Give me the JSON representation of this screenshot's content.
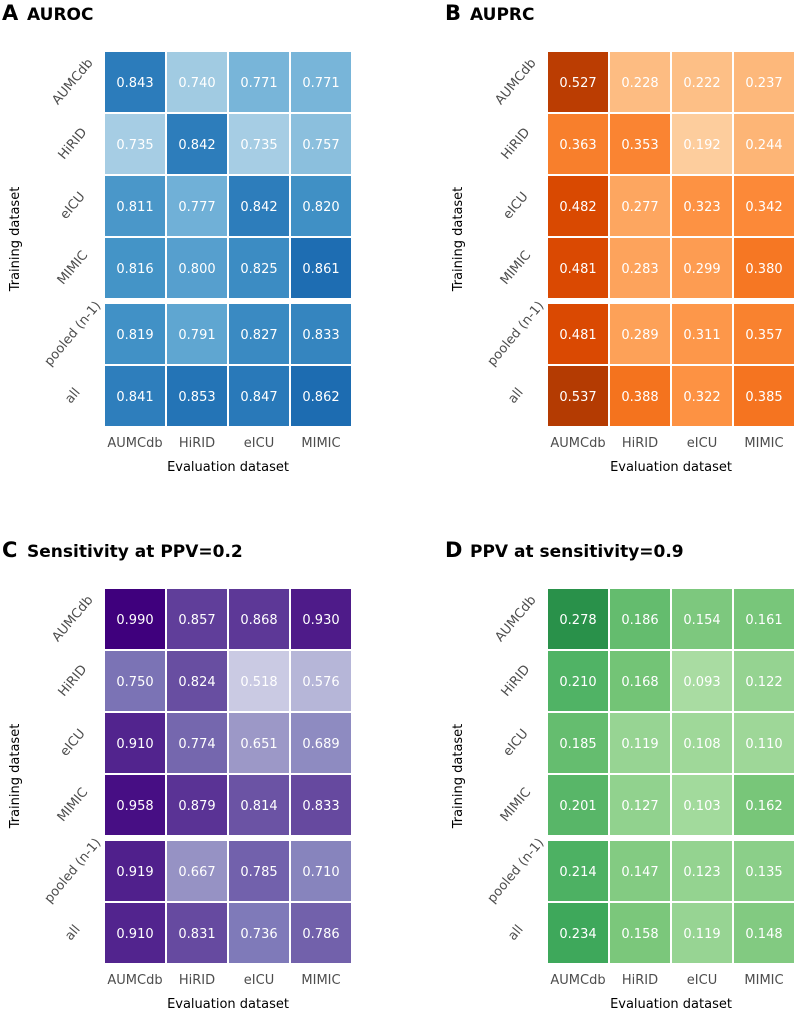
{
  "chart_data": [
    {
      "type": "heatmap",
      "panel_letter": "A",
      "title": "AUROC",
      "palette": "blues",
      "xlabel": "Evaluation dataset",
      "ylabel": "Training dataset",
      "columns": [
        "AUMCdb",
        "HiRID",
        "eICU",
        "MIMIC"
      ],
      "rows": [
        "AUMCdb",
        "HiRID",
        "eICU",
        "MIMIC",
        "pooled (n-1)",
        "all"
      ],
      "values": [
        [
          "0.843",
          "0.740",
          "0.771",
          "0.771"
        ],
        [
          "0.735",
          "0.842",
          "0.735",
          "0.757"
        ],
        [
          "0.811",
          "0.777",
          "0.842",
          "0.820"
        ],
        [
          "0.816",
          "0.800",
          "0.825",
          "0.861"
        ],
        [
          "0.819",
          "0.791",
          "0.827",
          "0.833"
        ],
        [
          "0.841",
          "0.853",
          "0.847",
          "0.862"
        ]
      ]
    },
    {
      "type": "heatmap",
      "panel_letter": "B",
      "title": "AUPRC",
      "palette": "oranges",
      "xlabel": "Evaluation dataset",
      "ylabel": "Training dataset",
      "columns": [
        "AUMCdb",
        "HiRID",
        "eICU",
        "MIMIC"
      ],
      "rows": [
        "AUMCdb",
        "HiRID",
        "eICU",
        "MIMIC",
        "pooled (n-1)",
        "all"
      ],
      "values": [
        [
          "0.527",
          "0.228",
          "0.222",
          "0.237"
        ],
        [
          "0.363",
          "0.353",
          "0.192",
          "0.244"
        ],
        [
          "0.482",
          "0.277",
          "0.323",
          "0.342"
        ],
        [
          "0.481",
          "0.283",
          "0.299",
          "0.380"
        ],
        [
          "0.481",
          "0.289",
          "0.311",
          "0.357"
        ],
        [
          "0.537",
          "0.388",
          "0.322",
          "0.385"
        ]
      ]
    },
    {
      "type": "heatmap",
      "panel_letter": "C",
      "title": "Sensitivity at PPV=0.2",
      "palette": "purples",
      "xlabel": "Evaluation dataset",
      "ylabel": "Training dataset",
      "columns": [
        "AUMCdb",
        "HiRID",
        "eICU",
        "MIMIC"
      ],
      "rows": [
        "AUMCdb",
        "HiRID",
        "eICU",
        "MIMIC",
        "pooled (n-1)",
        "all"
      ],
      "values": [
        [
          "0.990",
          "0.857",
          "0.868",
          "0.930"
        ],
        [
          "0.750",
          "0.824",
          "0.518",
          "0.576"
        ],
        [
          "0.910",
          "0.774",
          "0.651",
          "0.689"
        ],
        [
          "0.958",
          "0.879",
          "0.814",
          "0.833"
        ],
        [
          "0.919",
          "0.667",
          "0.785",
          "0.710"
        ],
        [
          "0.910",
          "0.831",
          "0.736",
          "0.786"
        ]
      ]
    },
    {
      "type": "heatmap",
      "panel_letter": "D",
      "title": "PPV at sensitivity=0.9",
      "palette": "greens",
      "xlabel": "Evaluation dataset",
      "ylabel": "Training dataset",
      "columns": [
        "AUMCdb",
        "HiRID",
        "eICU",
        "MIMIC"
      ],
      "rows": [
        "AUMCdb",
        "HiRID",
        "eICU",
        "MIMIC",
        "pooled (n-1)",
        "all"
      ],
      "values": [
        [
          "0.278",
          "0.186",
          "0.154",
          "0.161"
        ],
        [
          "0.210",
          "0.168",
          "0.093",
          "0.122"
        ],
        [
          "0.185",
          "0.119",
          "0.108",
          "0.110"
        ],
        [
          "0.201",
          "0.127",
          "0.103",
          "0.162"
        ],
        [
          "0.214",
          "0.147",
          "0.123",
          "0.135"
        ],
        [
          "0.234",
          "0.158",
          "0.119",
          "0.148"
        ]
      ]
    }
  ]
}
